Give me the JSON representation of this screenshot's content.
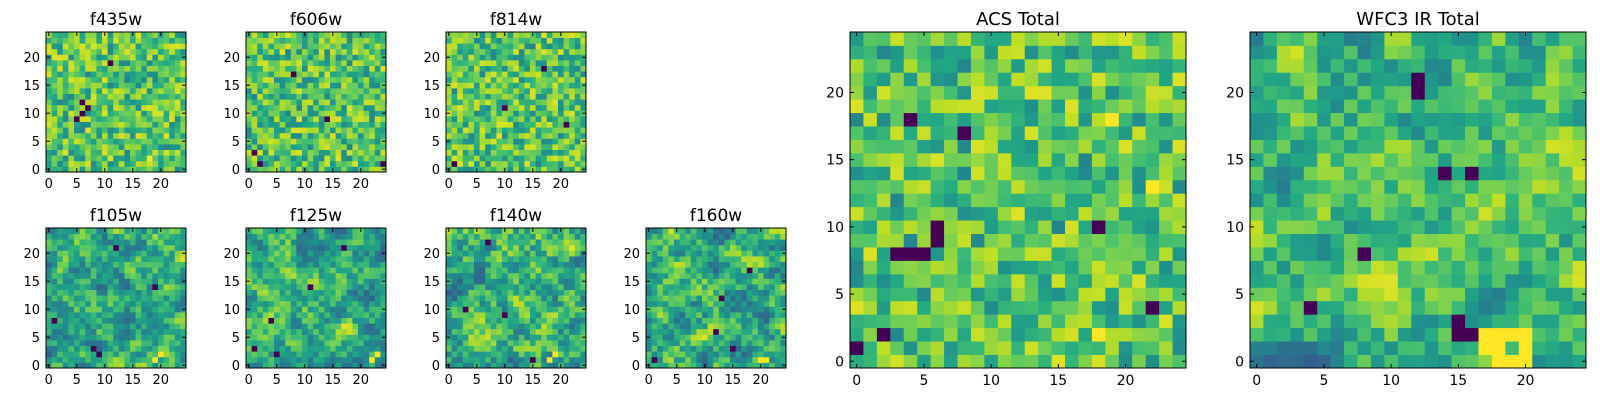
{
  "figure": {
    "colormap": "viridis",
    "colors": {
      "background": "#ffffff",
      "axis": "#000000",
      "low": "#440154",
      "mid": "#21918c",
      "high": "#fde725"
    }
  },
  "chart_data": [
    {
      "type": "heatmap",
      "title": "f435w",
      "grid_size": 25,
      "xlim": [
        0,
        24
      ],
      "ylim": [
        0,
        24
      ],
      "xticks": [
        "0",
        "5",
        "10",
        "15",
        "20"
      ],
      "yticks": [
        "0",
        "5",
        "10",
        "15",
        "20"
      ],
      "seed": 11,
      "texture": "noise",
      "dark_spots": [
        [
          5,
          9
        ],
        [
          6,
          10
        ],
        [
          6,
          12
        ],
        [
          7,
          11
        ],
        [
          11,
          19
        ]
      ],
      "bright_spots": [
        [
          18,
          2
        ]
      ]
    },
    {
      "type": "heatmap",
      "title": "f606w",
      "grid_size": 25,
      "xlim": [
        0,
        24
      ],
      "ylim": [
        0,
        24
      ],
      "xticks": [
        "0",
        "5",
        "10",
        "15",
        "20"
      ],
      "yticks": [
        "0",
        "5",
        "10",
        "15",
        "20"
      ],
      "seed": 23,
      "texture": "noise",
      "dark_spots": [
        [
          1,
          3
        ],
        [
          2,
          1
        ],
        [
          8,
          17
        ],
        [
          14,
          9
        ],
        [
          24,
          1
        ]
      ],
      "bright_spots": []
    },
    {
      "type": "heatmap",
      "title": "f814w",
      "grid_size": 25,
      "xlim": [
        0,
        24
      ],
      "ylim": [
        0,
        24
      ],
      "xticks": [
        "0",
        "5",
        "10",
        "15",
        "20"
      ],
      "yticks": [
        "0",
        "5",
        "10",
        "15",
        "20"
      ],
      "seed": 37,
      "texture": "noise",
      "dark_spots": [
        [
          1,
          1
        ],
        [
          10,
          11
        ],
        [
          17,
          18
        ],
        [
          21,
          8
        ]
      ],
      "bright_spots": []
    },
    {
      "type": "heatmap",
      "title": "f105w",
      "grid_size": 25,
      "xlim": [
        0,
        24
      ],
      "ylim": [
        0,
        24
      ],
      "xticks": [
        "0",
        "5",
        "10",
        "15",
        "20"
      ],
      "yticks": [
        "0",
        "5",
        "10",
        "15",
        "20"
      ],
      "seed": 41,
      "texture": "smooth",
      "dark_spots": [
        [
          8,
          3
        ],
        [
          9,
          2
        ],
        [
          12,
          21
        ],
        [
          1,
          8
        ],
        [
          19,
          14
        ]
      ],
      "bright_spots": [
        [
          19,
          1
        ],
        [
          20,
          2
        ]
      ]
    },
    {
      "type": "heatmap",
      "title": "f125w",
      "grid_size": 25,
      "xlim": [
        0,
        24
      ],
      "ylim": [
        0,
        24
      ],
      "xticks": [
        "0",
        "5",
        "10",
        "15",
        "20"
      ],
      "yticks": [
        "0",
        "5",
        "10",
        "15",
        "20"
      ],
      "seed": 53,
      "texture": "smooth",
      "dark_spots": [
        [
          4,
          8
        ],
        [
          5,
          2
        ],
        [
          11,
          14
        ],
        [
          17,
          21
        ],
        [
          1,
          3
        ]
      ],
      "bright_spots": [
        [
          22,
          1
        ],
        [
          23,
          2
        ]
      ]
    },
    {
      "type": "heatmap",
      "title": "f140w",
      "grid_size": 25,
      "xlim": [
        0,
        24
      ],
      "ylim": [
        0,
        24
      ],
      "xticks": [
        "0",
        "5",
        "10",
        "15",
        "20"
      ],
      "yticks": [
        "0",
        "5",
        "10",
        "15",
        "20"
      ],
      "seed": 67,
      "texture": "smooth",
      "dark_spots": [
        [
          10,
          9
        ],
        [
          3,
          10
        ],
        [
          15,
          1
        ],
        [
          7,
          22
        ]
      ],
      "bright_spots": [
        [
          18,
          1
        ],
        [
          19,
          2
        ]
      ]
    },
    {
      "type": "heatmap",
      "title": "f160w",
      "grid_size": 25,
      "xlim": [
        0,
        24
      ],
      "ylim": [
        0,
        24
      ],
      "xticks": [
        "0",
        "5",
        "10",
        "15",
        "20"
      ],
      "yticks": [
        "0",
        "5",
        "10",
        "15",
        "20"
      ],
      "seed": 71,
      "texture": "smooth",
      "dark_spots": [
        [
          1,
          1
        ],
        [
          12,
          6
        ],
        [
          13,
          12
        ],
        [
          15,
          3
        ],
        [
          18,
          17
        ]
      ],
      "bright_spots": [
        [
          20,
          1
        ],
        [
          21,
          1
        ]
      ]
    },
    {
      "type": "heatmap",
      "title": "ACS Total",
      "grid_size": 25,
      "xlim": [
        0,
        24
      ],
      "ylim": [
        0,
        24
      ],
      "xticks": [
        "0",
        "5",
        "10",
        "15",
        "20"
      ],
      "yticks": [
        "0",
        "5",
        "10",
        "15",
        "20"
      ],
      "seed": 89,
      "texture": "noise",
      "dark_spots": [
        [
          4,
          18
        ],
        [
          8,
          17
        ],
        [
          6,
          10
        ],
        [
          6,
          9
        ],
        [
          5,
          8
        ],
        [
          4,
          8
        ],
        [
          3,
          8
        ],
        [
          18,
          10
        ],
        [
          2,
          2
        ],
        [
          0,
          1
        ],
        [
          22,
          4
        ]
      ],
      "bright_spots": [
        [
          19,
          18
        ],
        [
          22,
          13
        ],
        [
          18,
          2
        ]
      ]
    },
    {
      "type": "heatmap",
      "title": "WFC3 IR Total",
      "grid_size": 25,
      "xlim": [
        0,
        24
      ],
      "ylim": [
        0,
        24
      ],
      "xticks": [
        "0",
        "5",
        "10",
        "15",
        "20"
      ],
      "yticks": [
        "0",
        "5",
        "10",
        "15",
        "20"
      ],
      "seed": 97,
      "texture": "smooth",
      "dark_spots": [
        [
          12,
          21
        ],
        [
          12,
          20
        ],
        [
          16,
          14
        ],
        [
          15,
          2
        ],
        [
          16,
          2
        ],
        [
          15,
          3
        ],
        [
          8,
          8
        ],
        [
          4,
          4
        ],
        [
          14,
          14
        ]
      ],
      "bright_spots": [
        [
          17,
          2
        ],
        [
          18,
          1
        ],
        [
          19,
          2
        ],
        [
          20,
          2
        ],
        [
          18,
          0
        ],
        [
          19,
          0
        ],
        [
          20,
          0
        ],
        [
          20,
          1
        ],
        [
          17,
          1
        ],
        [
          18,
          2
        ]
      ]
    }
  ]
}
